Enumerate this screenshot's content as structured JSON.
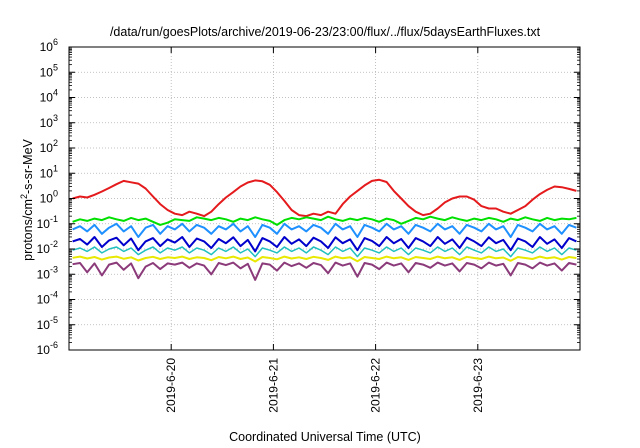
{
  "chart_data": {
    "type": "line",
    "title": "/data/run/goesPlots/archive/2019-06-23/23:00/flux/../flux/5daysEarthFluxes.txt",
    "xlabel": "Coordinated Universal Time (UTC)",
    "ylabel_parts": [
      "protons/cm",
      "2",
      "-s-sr-MeV"
    ],
    "y_scale": "log",
    "ylim_exp": [
      -6,
      6
    ],
    "y_ticks": [
      {
        "base": "10",
        "exp": "-6"
      },
      {
        "base": "10",
        "exp": "-5"
      },
      {
        "base": "10",
        "exp": "-4"
      },
      {
        "base": "10",
        "exp": "-3"
      },
      {
        "base": "10",
        "exp": "-2"
      },
      {
        "base": "10",
        "exp": "-1"
      },
      {
        "base": "10",
        "exp": "0"
      },
      {
        "base": "10",
        "exp": "1"
      },
      {
        "base": "10",
        "exp": "2"
      },
      {
        "base": "10",
        "exp": "3"
      },
      {
        "base": "10",
        "exp": "4"
      },
      {
        "base": "10",
        "exp": "5"
      },
      {
        "base": "10",
        "exp": "6"
      }
    ],
    "xlim": [
      "2019-06-19T00:00",
      "2019-06-24T00:00"
    ],
    "x_ticks": [
      {
        "label": "2019-6-20",
        "date": "2019-06-20T00:00"
      },
      {
        "label": "2019-6-21",
        "date": "2019-06-21T00:00"
      },
      {
        "label": "2019-6-22",
        "date": "2019-06-22T00:00"
      },
      {
        "label": "2019-6-23",
        "date": "2019-06-23T00:00"
      }
    ],
    "grid": true,
    "series": [
      {
        "color": "#e41a1c",
        "width": 2,
        "values": [
          1.0,
          1.2,
          1.1,
          1.4,
          1.9,
          2.6,
          3.7,
          5.0,
          4.4,
          3.9,
          2.5,
          1.2,
          0.6,
          0.35,
          0.25,
          0.22,
          0.3,
          0.25,
          0.2,
          0.3,
          0.6,
          1.1,
          1.8,
          3.0,
          4.3,
          5.2,
          4.8,
          3.5,
          1.8,
          0.8,
          0.35,
          0.22,
          0.2,
          0.25,
          0.22,
          0.3,
          0.25,
          0.6,
          1.2,
          2.0,
          3.3,
          5.0,
          5.5,
          4.5,
          2.0,
          1.0,
          0.5,
          0.3,
          0.22,
          0.25,
          0.4,
          0.7,
          1.0,
          1.2,
          1.2,
          0.9,
          0.5,
          0.4,
          0.4,
          0.3,
          0.25,
          0.35,
          0.5,
          0.9,
          1.5,
          2.2,
          3.0,
          2.8,
          2.4,
          2.0
        ]
      },
      {
        "color": "#00e000",
        "width": 2,
        "values": [
          0.12,
          0.15,
          0.13,
          0.16,
          0.14,
          0.18,
          0.15,
          0.13,
          0.17,
          0.14,
          0.16,
          0.12,
          0.09,
          0.11,
          0.15,
          0.14,
          0.13,
          0.18,
          0.16,
          0.14,
          0.17,
          0.15,
          0.12,
          0.16,
          0.14,
          0.18,
          0.15,
          0.13,
          0.09,
          0.14,
          0.17,
          0.15,
          0.18,
          0.16,
          0.14,
          0.19,
          0.15,
          0.13,
          0.16,
          0.14,
          0.17,
          0.15,
          0.12,
          0.16,
          0.14,
          0.1,
          0.13,
          0.17,
          0.15,
          0.19,
          0.16,
          0.14,
          0.18,
          0.15,
          0.13,
          0.16,
          0.14,
          0.17,
          0.15,
          0.12,
          0.16,
          0.14,
          0.18,
          0.15,
          0.13,
          0.17,
          0.14,
          0.16,
          0.15,
          0.17
        ]
      },
      {
        "color": "#1e90ff",
        "width": 2,
        "values": [
          0.06,
          0.08,
          0.05,
          0.09,
          0.04,
          0.07,
          0.1,
          0.05,
          0.08,
          0.03,
          0.07,
          0.09,
          0.04,
          0.08,
          0.06,
          0.1,
          0.05,
          0.09,
          0.07,
          0.04,
          0.08,
          0.06,
          0.1,
          0.05,
          0.08,
          0.03,
          0.09,
          0.07,
          0.04,
          0.1,
          0.06,
          0.08,
          0.05,
          0.09,
          0.07,
          0.04,
          0.1,
          0.06,
          0.08,
          0.03,
          0.09,
          0.07,
          0.05,
          0.1,
          0.06,
          0.08,
          0.04,
          0.09,
          0.07,
          0.05,
          0.1,
          0.06,
          0.08,
          0.04,
          0.09,
          0.07,
          0.05,
          0.1,
          0.06,
          0.08,
          0.03,
          0.09,
          0.07,
          0.05,
          0.1,
          0.06,
          0.08,
          0.04,
          0.09,
          0.07
        ]
      },
      {
        "color": "#0000cc",
        "width": 2,
        "values": [
          0.02,
          0.025,
          0.015,
          0.03,
          0.012,
          0.022,
          0.028,
          0.014,
          0.026,
          0.009,
          0.02,
          0.027,
          0.013,
          0.024,
          0.018,
          0.03,
          0.012,
          0.026,
          0.02,
          0.011,
          0.025,
          0.017,
          0.029,
          0.013,
          0.023,
          0.008,
          0.027,
          0.02,
          0.012,
          0.03,
          0.016,
          0.024,
          0.013,
          0.028,
          0.02,
          0.011,
          0.029,
          0.017,
          0.024,
          0.009,
          0.027,
          0.021,
          0.013,
          0.03,
          0.017,
          0.025,
          0.011,
          0.027,
          0.02,
          0.013,
          0.03,
          0.016,
          0.024,
          0.011,
          0.028,
          0.02,
          0.013,
          0.029,
          0.017,
          0.023,
          0.009,
          0.026,
          0.02,
          0.012,
          0.03,
          0.016,
          0.024,
          0.011,
          0.027,
          0.02
        ]
      },
      {
        "color": "#20c0c0",
        "width": 1.5,
        "values": [
          0.009,
          0.011,
          0.008,
          0.012,
          0.007,
          0.01,
          0.012,
          0.008,
          0.011,
          0.006,
          0.009,
          0.012,
          0.007,
          0.011,
          0.009,
          0.012,
          0.007,
          0.011,
          0.009,
          0.006,
          0.011,
          0.008,
          0.012,
          0.007,
          0.01,
          0.005,
          0.011,
          0.009,
          0.007,
          0.012,
          0.008,
          0.011,
          0.007,
          0.012,
          0.009,
          0.006,
          0.012,
          0.008,
          0.011,
          0.005,
          0.011,
          0.009,
          0.007,
          0.012,
          0.008,
          0.011,
          0.006,
          0.011,
          0.009,
          0.007,
          0.012,
          0.008,
          0.011,
          0.006,
          0.012,
          0.009,
          0.007,
          0.012,
          0.008,
          0.01,
          0.005,
          0.011,
          0.009,
          0.007,
          0.012,
          0.008,
          0.011,
          0.006,
          0.011,
          0.009
        ]
      },
      {
        "color": "#e8e800",
        "width": 2,
        "values": [
          0.0045,
          0.005,
          0.0042,
          0.0048,
          0.0038,
          0.0046,
          0.005,
          0.0041,
          0.0047,
          0.0035,
          0.0044,
          0.0049,
          0.004,
          0.0047,
          0.0044,
          0.005,
          0.004,
          0.0047,
          0.0044,
          0.0036,
          0.0048,
          0.0043,
          0.005,
          0.004,
          0.0046,
          0.0032,
          0.0048,
          0.0044,
          0.0039,
          0.005,
          0.0042,
          0.0047,
          0.004,
          0.0049,
          0.0044,
          0.0037,
          0.005,
          0.0043,
          0.0047,
          0.0033,
          0.0048,
          0.0044,
          0.004,
          0.005,
          0.0043,
          0.0047,
          0.0037,
          0.0048,
          0.0044,
          0.004,
          0.005,
          0.0043,
          0.0047,
          0.0037,
          0.0049,
          0.0044,
          0.004,
          0.005,
          0.0043,
          0.0046,
          0.0034,
          0.0048,
          0.0044,
          0.004,
          0.005,
          0.0043,
          0.0047,
          0.0038,
          0.0048,
          0.0044
        ]
      },
      {
        "color": "#8b3a7a",
        "width": 2,
        "values": [
          0.0025,
          0.0028,
          0.0012,
          0.0027,
          0.0009,
          0.0024,
          0.0029,
          0.0015,
          0.0027,
          0.0007,
          0.002,
          0.0028,
          0.0016,
          0.0027,
          0.0024,
          0.0029,
          0.0018,
          0.0027,
          0.0022,
          0.001,
          0.0028,
          0.0023,
          0.0029,
          0.0017,
          0.0026,
          0.0006,
          0.0027,
          0.0024,
          0.0014,
          0.0029,
          0.0021,
          0.0027,
          0.0018,
          0.0028,
          0.0023,
          0.0011,
          0.0029,
          0.0022,
          0.0027,
          0.0008,
          0.0028,
          0.0024,
          0.0016,
          0.0029,
          0.0022,
          0.0027,
          0.0012,
          0.0028,
          0.0024,
          0.0018,
          0.0029,
          0.0022,
          0.0027,
          0.0013,
          0.0028,
          0.0024,
          0.0017,
          0.0029,
          0.0022,
          0.0026,
          0.0009,
          0.0028,
          0.0024,
          0.0017,
          0.0029,
          0.0022,
          0.0027,
          0.0014,
          0.0028,
          0.0024
        ]
      }
    ]
  }
}
